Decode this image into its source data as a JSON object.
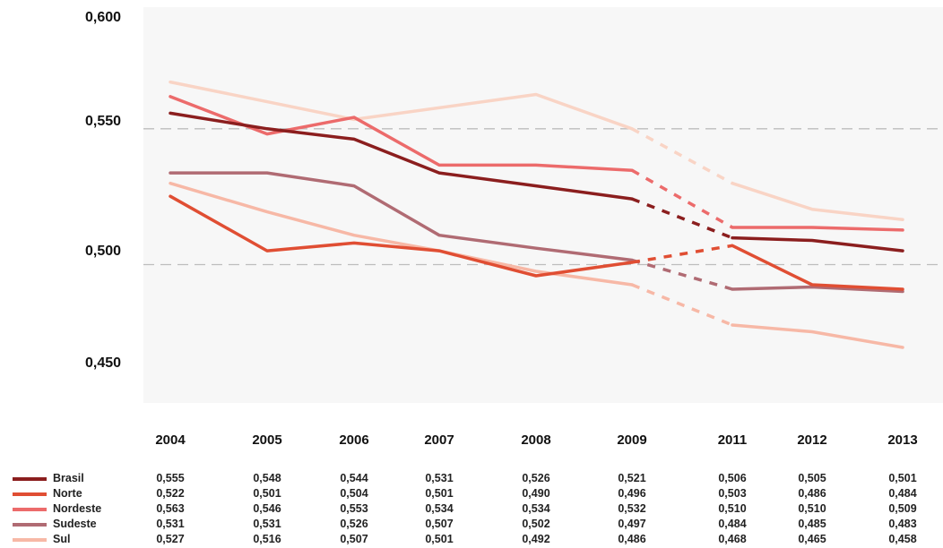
{
  "chart_data": {
    "type": "line",
    "x": [
      "2004",
      "2005",
      "2006",
      "2007",
      "2008",
      "2009",
      "2011",
      "2012",
      "2013"
    ],
    "yticks": [
      "0,600",
      "0,550",
      "0,500",
      "0,450"
    ],
    "ylim": [
      0.44,
      0.6
    ],
    "reference_lines": [
      0.548,
      0.495
    ],
    "gap_between": [
      "2009",
      "2011"
    ],
    "series": [
      {
        "name": "Brasil",
        "color": "#8b1e1e",
        "values": [
          0.555,
          0.548,
          0.544,
          0.531,
          0.526,
          0.521,
          0.506,
          0.505,
          0.501
        ],
        "labels": [
          "0,555",
          "0,548",
          "0,544",
          "0,531",
          "0,526",
          "0,521",
          "0,506",
          "0,505",
          "0,501"
        ]
      },
      {
        "name": "Norte",
        "color": "#e04e33",
        "values": [
          0.522,
          0.501,
          0.504,
          0.501,
          0.49,
          0.496,
          0.503,
          0.486,
          0.484
        ],
        "labels": [
          "0,522",
          "0,501",
          "0,504",
          "0,501",
          "0,490",
          "0,496",
          "0,503",
          "0,486",
          "0,484"
        ]
      },
      {
        "name": "Nordeste",
        "color": "#ec6b6b",
        "values": [
          0.563,
          0.546,
          0.553,
          0.534,
          0.534,
          0.532,
          0.51,
          0.51,
          0.509
        ],
        "labels": [
          "0,563",
          "0,546",
          "0,553",
          "0,534",
          "0,534",
          "0,532",
          "0,510",
          "0,510",
          "0,509"
        ]
      },
      {
        "name": "Sudeste",
        "color": "#b06b73",
        "values": [
          0.531,
          0.531,
          0.526,
          0.507,
          0.502,
          0.497,
          0.484,
          0.485,
          0.483
        ],
        "labels": [
          "0,531",
          "0,531",
          "0,526",
          "0,507",
          "0,502",
          "0,497",
          "0,484",
          "0,485",
          "0,483"
        ]
      },
      {
        "name": "Sul",
        "color": "#f7b8a6",
        "values": [
          0.527,
          0.516,
          0.507,
          0.501,
          0.492,
          0.486,
          0.468,
          0.465,
          0.458
        ],
        "labels": [
          "0,527",
          "0,516",
          "0,507",
          "0,501",
          "0,492",
          "0,486",
          "0,468",
          "0,465",
          "0,458"
        ]
      },
      {
        "name": "",
        "color": "#f9d4c5",
        "values": [
          0.57,
          null,
          0.552,
          null,
          0.564,
          0.548,
          0.527,
          0.517,
          0.513
        ],
        "labels": []
      }
    ]
  }
}
